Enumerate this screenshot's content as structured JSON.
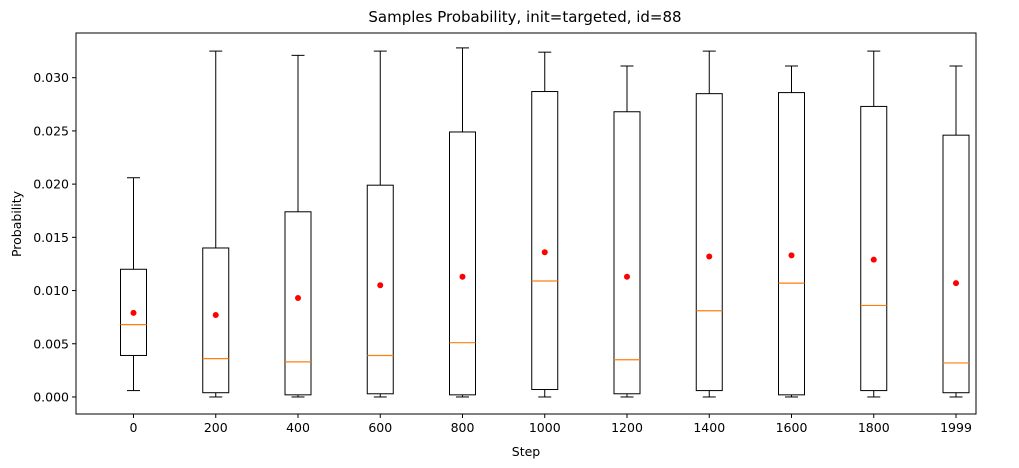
{
  "chart_data": {
    "type": "box",
    "title": "Samples Probability, init=targeted, id=88",
    "xlabel": "Step",
    "ylabel": "Probability",
    "categories": [
      "0",
      "200",
      "400",
      "600",
      "800",
      "1000",
      "1200",
      "1400",
      "1600",
      "1800",
      "1999"
    ],
    "ylim": [
      -0.0016,
      0.0342
    ],
    "yticks": [
      0.0,
      0.005,
      0.01,
      0.015,
      0.02,
      0.025,
      0.03
    ],
    "ytick_labels": [
      "0.000",
      "0.005",
      "0.010",
      "0.015",
      "0.020",
      "0.025",
      "0.030"
    ],
    "boxes": [
      {
        "whislo": 0.0006,
        "q1": 0.0039,
        "med": 0.0068,
        "q3": 0.012,
        "whishi": 0.0206,
        "mean": 0.0079
      },
      {
        "whislo": 0.0,
        "q1": 0.0004,
        "med": 0.0036,
        "q3": 0.014,
        "whishi": 0.0325,
        "mean": 0.0077
      },
      {
        "whislo": 0.0,
        "q1": 0.0002,
        "med": 0.0033,
        "q3": 0.0174,
        "whishi": 0.0321,
        "mean": 0.0093
      },
      {
        "whislo": 0.0,
        "q1": 0.0003,
        "med": 0.0039,
        "q3": 0.0199,
        "whishi": 0.0325,
        "mean": 0.0105
      },
      {
        "whislo": 0.0,
        "q1": 0.0002,
        "med": 0.0051,
        "q3": 0.0249,
        "whishi": 0.0328,
        "mean": 0.0113
      },
      {
        "whislo": 0.0,
        "q1": 0.0007,
        "med": 0.0109,
        "q3": 0.0287,
        "whishi": 0.0324,
        "mean": 0.0136
      },
      {
        "whislo": 0.0,
        "q1": 0.0003,
        "med": 0.0035,
        "q3": 0.0268,
        "whishi": 0.0311,
        "mean": 0.0113
      },
      {
        "whislo": 0.0,
        "q1": 0.0006,
        "med": 0.0081,
        "q3": 0.0285,
        "whishi": 0.0325,
        "mean": 0.0132
      },
      {
        "whislo": 0.0,
        "q1": 0.0002,
        "med": 0.0107,
        "q3": 0.0286,
        "whishi": 0.0311,
        "mean": 0.0133
      },
      {
        "whislo": 0.0,
        "q1": 0.0006,
        "med": 0.0086,
        "q3": 0.0273,
        "whishi": 0.0325,
        "mean": 0.0129
      },
      {
        "whislo": 0.0,
        "q1": 0.0004,
        "med": 0.0032,
        "q3": 0.0246,
        "whishi": 0.0311,
        "mean": 0.0107
      }
    ],
    "colors": {
      "box": "#000000",
      "median": "#ff7f0e",
      "mean": "#ff0000"
    },
    "grid": false,
    "legend": "none"
  }
}
